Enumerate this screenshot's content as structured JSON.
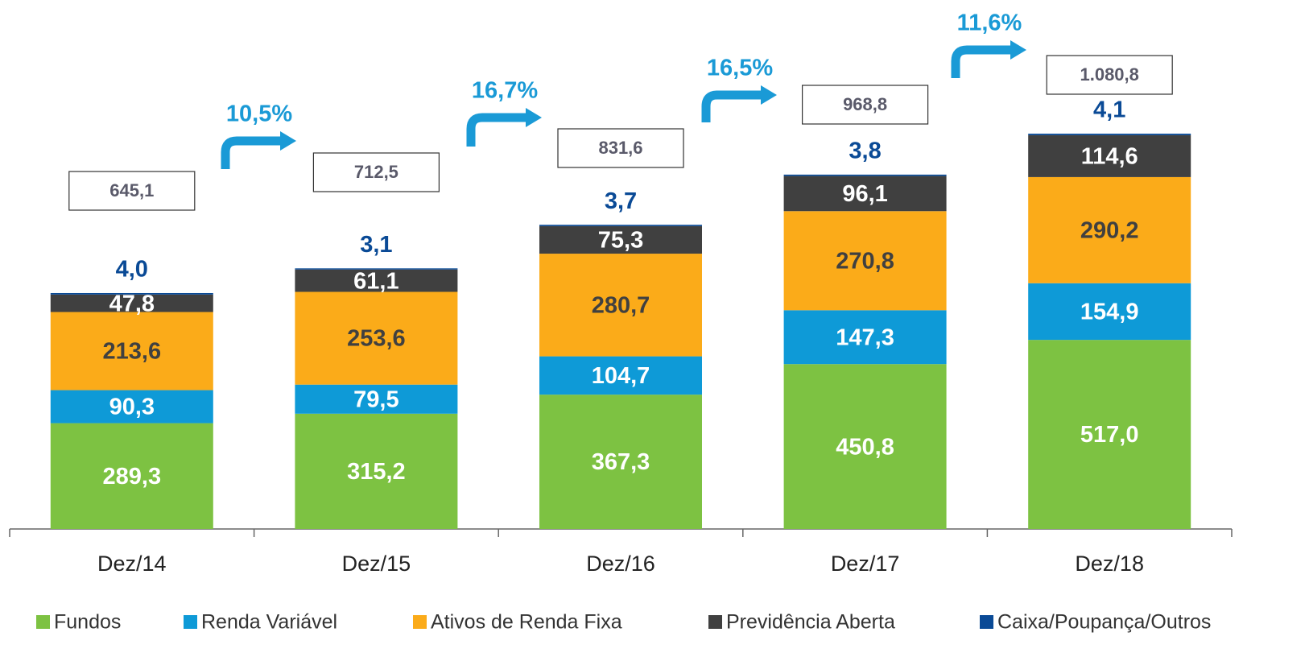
{
  "chart_data": {
    "type": "stacked_bar",
    "categories": [
      "Dez/14",
      "Dez/15",
      "Dez/16",
      "Dez/17",
      "Dez/18"
    ],
    "series": [
      {
        "name": "Fundos",
        "color": "#7dc242",
        "label_color": "#ffffff",
        "values": [
          289.3,
          315.2,
          367.3,
          450.8,
          517.0
        ],
        "value_labels": [
          "289,3",
          "315,2",
          "367,3",
          "450,8",
          "517,0"
        ]
      },
      {
        "name": "Renda Variável",
        "color": "#0e9ad7",
        "label_color": "#ffffff",
        "values": [
          90.3,
          79.5,
          104.7,
          147.3,
          154.9
        ],
        "value_labels": [
          "90,3",
          "79,5",
          "104,7",
          "147,3",
          "154,9"
        ]
      },
      {
        "name": "Ativos de Renda Fixa",
        "color": "#fbab19",
        "label_color": "#404040",
        "values": [
          213.6,
          253.6,
          280.7,
          270.8,
          290.2
        ],
        "value_labels": [
          "213,6",
          "253,6",
          "280,7",
          "270,8",
          "290,2"
        ]
      },
      {
        "name": "Previdência Aberta",
        "color": "#404040",
        "label_color": "#ffffff",
        "values": [
          47.8,
          61.1,
          75.3,
          96.1,
          114.6
        ],
        "value_labels": [
          "47,8",
          "61,1",
          "75,3",
          "96,1",
          "114,6"
        ]
      },
      {
        "name": "Caixa/Poupança/Outros",
        "color": "#0a4a96",
        "label_color": "#0a4a96",
        "values": [
          4.0,
          3.1,
          3.7,
          3.8,
          4.1
        ],
        "value_labels": [
          "4,0",
          "3,1",
          "3,7",
          "3,8",
          "4,1"
        ]
      }
    ],
    "totals": {
      "values": [
        645.1,
        712.5,
        831.6,
        968.8,
        1080.8
      ],
      "value_labels": [
        "645,1",
        "712,5",
        "831,6",
        "968,8",
        "1.080,8"
      ]
    },
    "growth": {
      "values": [
        10.5,
        16.7,
        16.5,
        11.6
      ],
      "value_labels": [
        "10,5%",
        "16,7%",
        "16,5%",
        "11,6%"
      ],
      "color": "#1a9ad6"
    },
    "legend": "bottom"
  }
}
